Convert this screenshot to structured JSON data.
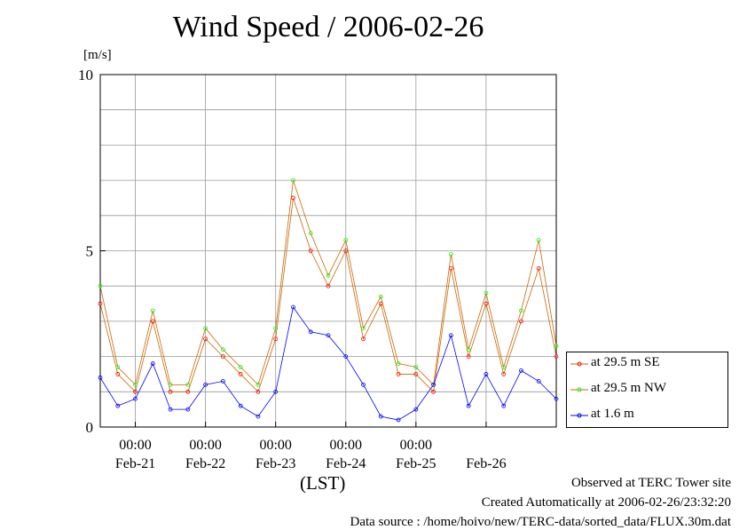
{
  "title": "Wind Speed / 2006-02-26",
  "unit_label": "[m/s]",
  "xlabel": "(LST)",
  "footer": {
    "line1": "Observed at TERC Tower site",
    "line2": "Created Automatically at 2006-02-26/23:32:20",
    "line3": "Data source : /home/hoivo/new/TERC-data/sorted_data/FLUX.30m.dat"
  },
  "legend": [
    {
      "label": "at 29.5 m SE",
      "color": "#ff0000"
    },
    {
      "label": "at 29.5 m NW",
      "color": "#00ff00"
    },
    {
      "label": "at 1.6 m",
      "color": "#0000ff"
    }
  ],
  "chart_data": {
    "type": "line",
    "title": "Wind Speed / 2006-02-26",
    "ylabel": "[m/s]",
    "xlabel": "(LST)",
    "ylim": [
      0,
      10
    ],
    "yticks": [
      0,
      5,
      10
    ],
    "xlim": [
      "2006-02-20 12:00",
      "2006-02-27 00:00"
    ],
    "x_hour_labels": [
      "00:00",
      "00:00",
      "00:00",
      "00:00",
      "00:00"
    ],
    "x_date_labels": [
      "Feb-21",
      "Feb-22",
      "Feb-23",
      "Feb-24",
      "Feb-25",
      "Feb-26"
    ],
    "grid": true,
    "legend_position": "right",
    "series": [
      {
        "name": "at 29.5 m SE",
        "color": "#ff0000",
        "x": [
          "2006-02-20 12:00",
          "2006-02-20 18:00",
          "2006-02-21 00:00",
          "2006-02-21 06:00",
          "2006-02-21 12:00",
          "2006-02-21 18:00",
          "2006-02-22 00:00",
          "2006-02-22 06:00",
          "2006-02-22 12:00",
          "2006-02-22 18:00",
          "2006-02-23 00:00",
          "2006-02-23 06:00",
          "2006-02-23 12:00",
          "2006-02-23 18:00",
          "2006-02-24 00:00",
          "2006-02-24 06:00",
          "2006-02-24 12:00",
          "2006-02-24 18:00",
          "2006-02-25 00:00",
          "2006-02-25 06:00",
          "2006-02-25 12:00",
          "2006-02-25 18:00",
          "2006-02-26 00:00",
          "2006-02-26 06:00",
          "2006-02-26 12:00",
          "2006-02-26 18:00",
          "2006-02-27 00:00"
        ],
        "y": [
          3.5,
          1.5,
          1.0,
          3.0,
          1.0,
          1.0,
          2.5,
          2.0,
          1.5,
          1.0,
          2.5,
          6.5,
          5.0,
          4.0,
          5.0,
          2.5,
          3.5,
          1.5,
          1.5,
          1.0,
          4.5,
          2.0,
          3.5,
          1.5,
          3.0,
          4.5,
          2.0
        ]
      },
      {
        "name": "at 29.5 m NW",
        "color": "#00ff00",
        "x": [
          "2006-02-20 12:00",
          "2006-02-20 18:00",
          "2006-02-21 00:00",
          "2006-02-21 06:00",
          "2006-02-21 12:00",
          "2006-02-21 18:00",
          "2006-02-22 00:00",
          "2006-02-22 06:00",
          "2006-02-22 12:00",
          "2006-02-22 18:00",
          "2006-02-23 00:00",
          "2006-02-23 06:00",
          "2006-02-23 12:00",
          "2006-02-23 18:00",
          "2006-02-24 00:00",
          "2006-02-24 06:00",
          "2006-02-24 12:00",
          "2006-02-24 18:00",
          "2006-02-25 00:00",
          "2006-02-25 06:00",
          "2006-02-25 12:00",
          "2006-02-25 18:00",
          "2006-02-26 00:00",
          "2006-02-26 06:00",
          "2006-02-26 12:00",
          "2006-02-26 18:00",
          "2006-02-27 00:00"
        ],
        "y": [
          4.0,
          1.7,
          1.2,
          3.3,
          1.2,
          1.2,
          2.8,
          2.2,
          1.7,
          1.2,
          2.8,
          7.0,
          5.5,
          4.3,
          5.3,
          2.8,
          3.7,
          1.8,
          1.7,
          1.2,
          4.9,
          2.2,
          3.8,
          1.7,
          3.3,
          5.3,
          2.3
        ]
      },
      {
        "name": "at 1.6 m",
        "color": "#0000ff",
        "x": [
          "2006-02-20 12:00",
          "2006-02-20 18:00",
          "2006-02-21 00:00",
          "2006-02-21 06:00",
          "2006-02-21 12:00",
          "2006-02-21 18:00",
          "2006-02-22 00:00",
          "2006-02-22 06:00",
          "2006-02-22 12:00",
          "2006-02-22 18:00",
          "2006-02-23 00:00",
          "2006-02-23 06:00",
          "2006-02-23 12:00",
          "2006-02-23 18:00",
          "2006-02-24 00:00",
          "2006-02-24 06:00",
          "2006-02-24 12:00",
          "2006-02-24 18:00",
          "2006-02-25 00:00",
          "2006-02-25 06:00",
          "2006-02-25 12:00",
          "2006-02-25 18:00",
          "2006-02-26 00:00",
          "2006-02-26 06:00",
          "2006-02-26 12:00",
          "2006-02-26 18:00",
          "2006-02-27 00:00"
        ],
        "y": [
          1.4,
          0.6,
          0.8,
          1.8,
          0.5,
          0.5,
          1.2,
          1.3,
          0.6,
          0.3,
          1.0,
          3.4,
          2.7,
          2.6,
          2.0,
          1.2,
          0.3,
          0.2,
          0.5,
          1.2,
          2.6,
          0.6,
          1.5,
          0.6,
          1.6,
          1.3,
          0.8
        ]
      }
    ]
  }
}
